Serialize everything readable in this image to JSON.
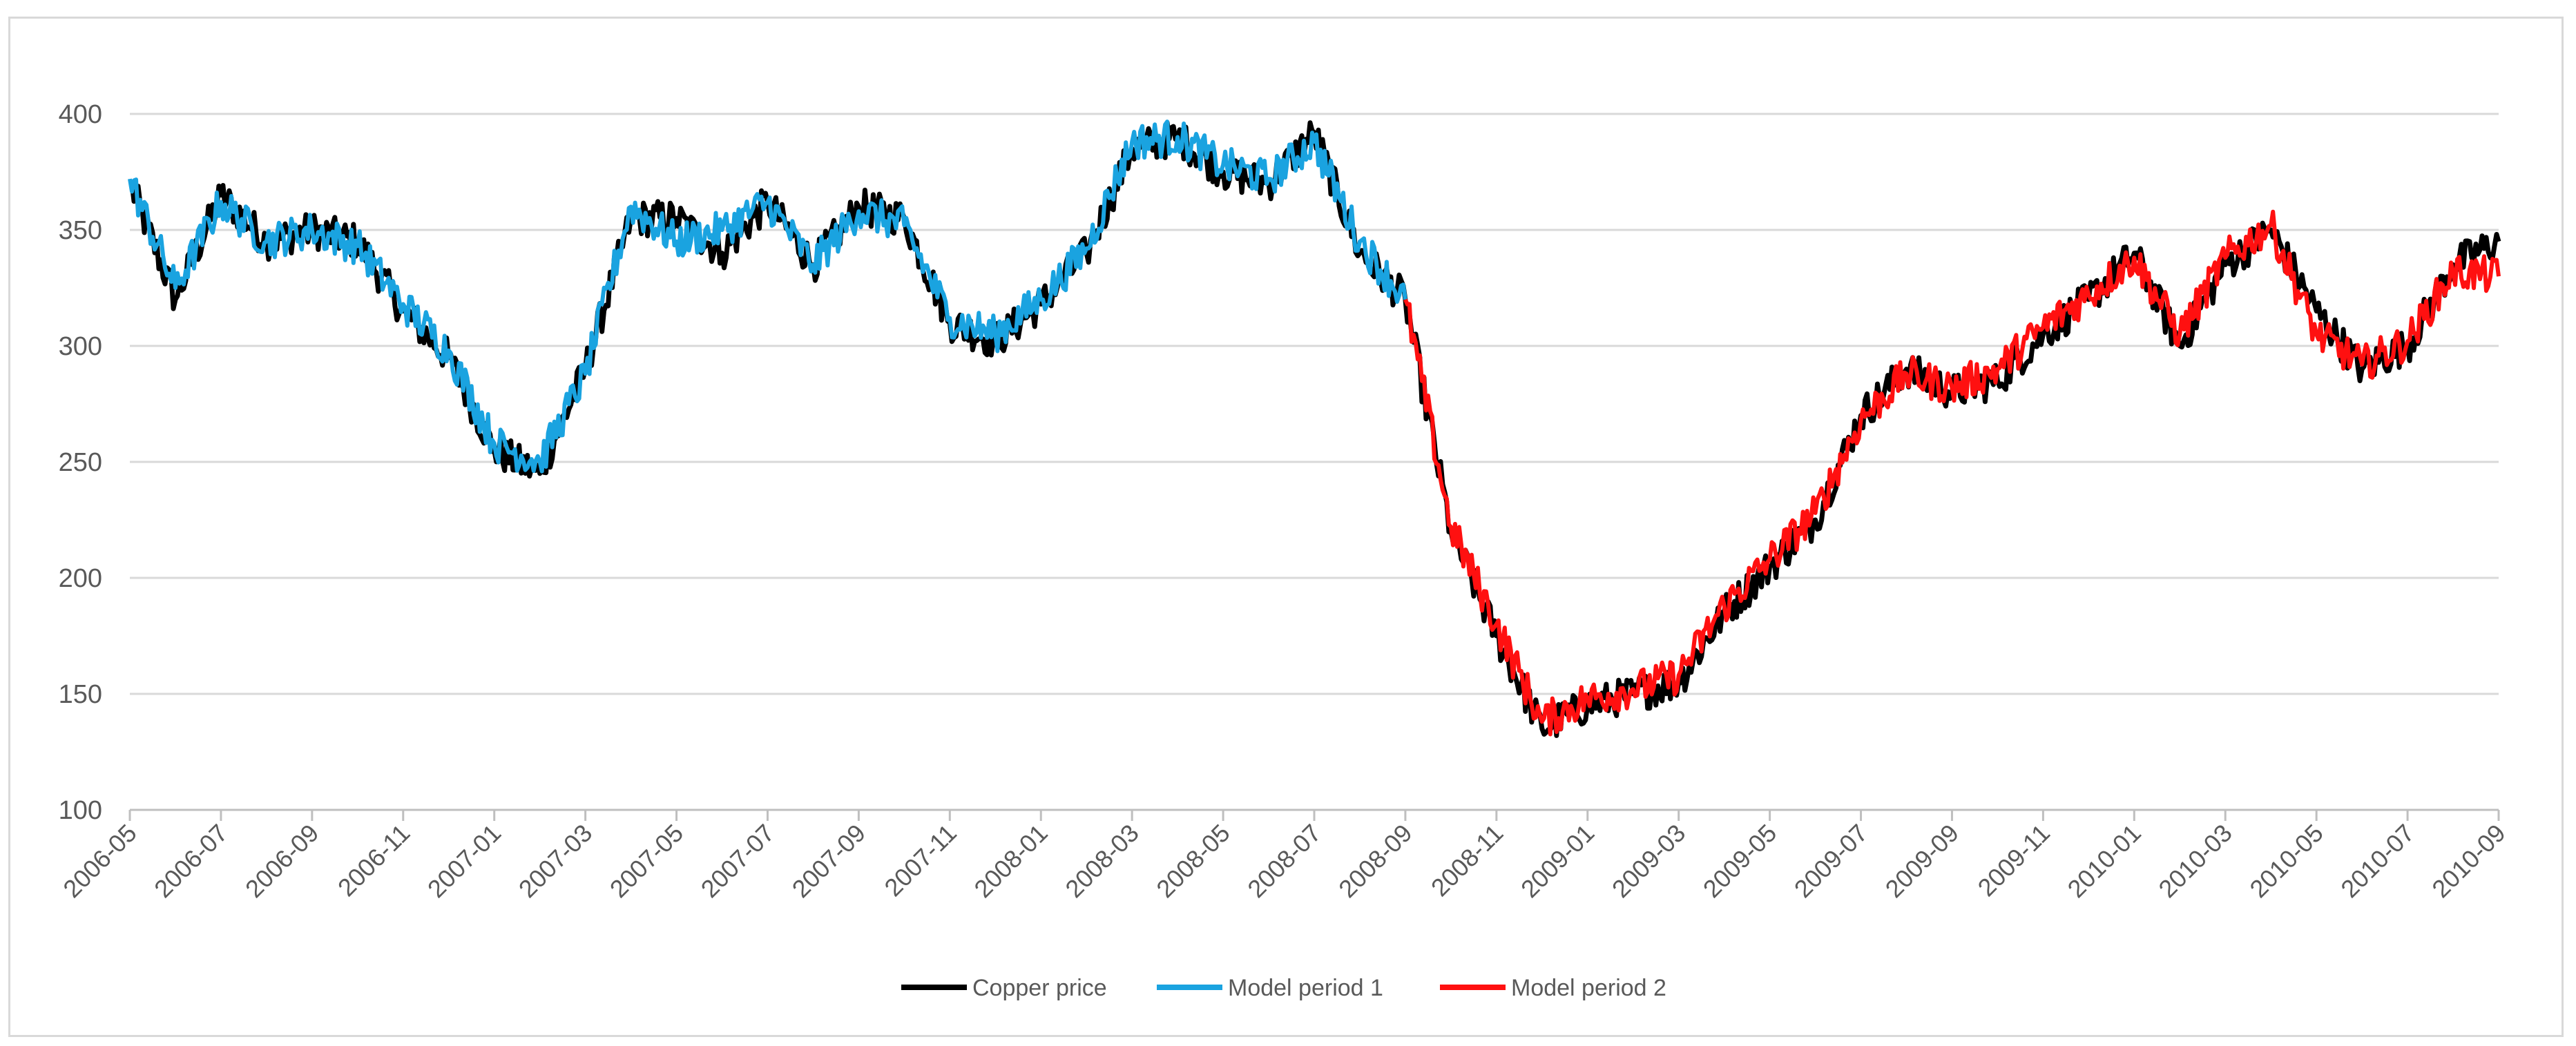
{
  "chart_data": {
    "type": "line",
    "title": "",
    "xlabel": "",
    "ylabel": "",
    "ylim": [
      100,
      400
    ],
    "yticks": [
      "100",
      "150",
      "200",
      "250",
      "300",
      "350",
      "400"
    ],
    "xticks": [
      "2006-05",
      "2006-07",
      "2006-09",
      "2006-11",
      "2007-01",
      "2007-03",
      "2007-05",
      "2007-07",
      "2007-09",
      "2007-11",
      "2008-01",
      "2008-03",
      "2008-05",
      "2008-07",
      "2008-09",
      "2008-11",
      "2009-01",
      "2009-03",
      "2009-05",
      "2009-07",
      "2009-09",
      "2009-11",
      "2010-01",
      "2010-03",
      "2010-05",
      "2010-07",
      "2010-09"
    ],
    "grid": "horizontal",
    "legend_position": "bottom-center",
    "series": [
      {
        "name": "Copper price",
        "color": "#000000",
        "x": [
          "2006-05",
          "2006-06",
          "2006-07",
          "2006-08",
          "2006-09",
          "2006-10",
          "2006-11",
          "2006-12",
          "2007-01",
          "2007-02",
          "2007-03",
          "2007-04",
          "2007-05",
          "2007-06",
          "2007-07",
          "2007-08",
          "2007-09",
          "2007-10",
          "2007-11",
          "2007-12",
          "2008-01",
          "2008-02",
          "2008-03",
          "2008-04",
          "2008-05",
          "2008-06",
          "2008-07",
          "2008-08",
          "2008-09",
          "2008-10",
          "2008-11",
          "2008-12",
          "2009-01",
          "2009-02",
          "2009-03",
          "2009-04",
          "2009-05",
          "2009-06",
          "2009-07",
          "2009-08",
          "2009-09",
          "2009-10",
          "2009-11",
          "2009-12",
          "2010-01",
          "2010-02",
          "2010-03",
          "2010-04",
          "2010-05",
          "2010-06",
          "2010-07",
          "2010-08",
          "2010-09"
        ],
        "values": [
          370,
          320,
          365,
          345,
          350,
          345,
          315,
          295,
          255,
          245,
          290,
          355,
          355,
          340,
          362,
          335,
          360,
          355,
          310,
          302,
          318,
          340,
          385,
          390,
          375,
          370,
          392,
          340,
          320,
          220,
          175,
          135,
          145,
          150,
          155,
          185,
          205,
          225,
          270,
          290,
          280,
          285,
          305,
          320,
          340,
          300,
          335,
          350,
          315,
          290,
          300,
          335,
          345
        ]
      },
      {
        "name": "Model period 1",
        "color": "#1aa3e0",
        "x": [
          "2006-05",
          "2006-06",
          "2006-07",
          "2006-08",
          "2006-09",
          "2006-10",
          "2006-11",
          "2006-12",
          "2007-01",
          "2007-02",
          "2007-03",
          "2007-04",
          "2007-05",
          "2007-06",
          "2007-07",
          "2007-08",
          "2007-09",
          "2007-10",
          "2007-11",
          "2007-12",
          "2008-01",
          "2008-02",
          "2008-03",
          "2008-04",
          "2008-05",
          "2008-06",
          "2008-07",
          "2008-08",
          "2008-09"
        ],
        "values": [
          372,
          325,
          362,
          345,
          350,
          343,
          318,
          298,
          258,
          250,
          288,
          360,
          345,
          350,
          362,
          335,
          358,
          352,
          312,
          305,
          320,
          342,
          388,
          390,
          378,
          372,
          388,
          345,
          320
        ]
      },
      {
        "name": "Model period 2",
        "color": "#ff1010",
        "x": [
          "2008-09",
          "2008-10",
          "2008-11",
          "2008-12",
          "2009-01",
          "2009-02",
          "2009-03",
          "2009-04",
          "2009-05",
          "2009-06",
          "2009-07",
          "2009-08",
          "2009-09",
          "2009-10",
          "2009-11",
          "2009-12",
          "2010-01",
          "2010-02",
          "2010-03",
          "2010-04",
          "2010-05",
          "2010-06",
          "2010-07",
          "2010-08",
          "2010-09"
        ],
        "values": [
          320,
          222,
          180,
          138,
          148,
          152,
          158,
          188,
          208,
          228,
          268,
          288,
          282,
          290,
          308,
          322,
          338,
          305,
          338,
          352,
          305,
          292,
          302,
          332,
          330
        ]
      }
    ]
  }
}
